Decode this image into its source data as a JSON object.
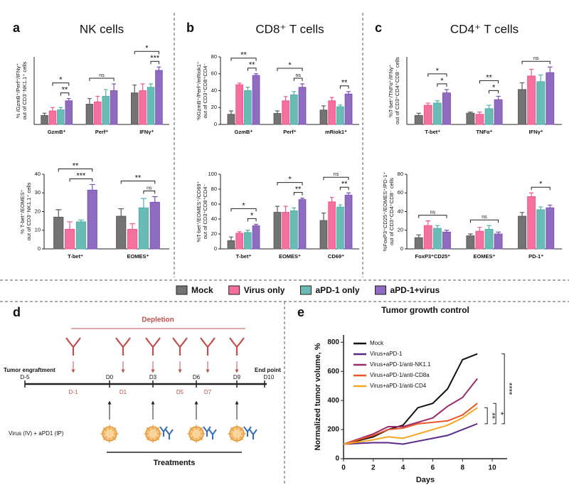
{
  "chart_data": [
    {
      "type": "bar",
      "panel": "a",
      "title": "NK cells",
      "ylabel": [
        "% /GzmB⁺/Perf⁺/IFNγ⁺",
        "out of CD3⁻NK1.1⁺ cells"
      ],
      "categories": [
        "GzmB⁺",
        "Perf⁺",
        "IFNγ⁺"
      ],
      "series": [
        {
          "values": [
            8,
            18,
            28
          ],
          "errors": [
            2,
            5,
            7
          ]
        },
        {
          "values": [
            12,
            20,
            30
          ],
          "errors": [
            3,
            5,
            6
          ]
        },
        {
          "values": [
            13,
            25,
            33
          ],
          "errors": [
            2,
            6,
            3
          ]
        },
        {
          "values": [
            21,
            30,
            48
          ],
          "errors": [
            2,
            6,
            3
          ]
        }
      ],
      "ylim": [
        0,
        60
      ],
      "annotations": [
        {
          "label": "**",
          "category": 0,
          "from": 2,
          "to": 3
        },
        {
          "label": "*",
          "category": 0,
          "from": 1,
          "to": 3
        },
        {
          "label": "ns",
          "category": 1,
          "from": 0,
          "to": 3
        },
        {
          "label": "***",
          "category": 2,
          "from": 2,
          "to": 3
        },
        {
          "label": "*",
          "category": 2,
          "from": 0,
          "to": 3
        }
      ]
    },
    {
      "type": "bar",
      "ylabel": [
        "% T-bet⁺/EOMES⁺",
        "out of CD3⁻NK1.1⁺ cells"
      ],
      "categories": [
        "T-bet⁺",
        "EOMES⁺"
      ],
      "series": [
        {
          "values": [
            17,
            17.5
          ],
          "errors": [
            4,
            4
          ]
        },
        {
          "values": [
            10.5,
            10.5
          ],
          "errors": [
            4,
            3
          ]
        },
        {
          "values": [
            14.5,
            22
          ],
          "errors": [
            1,
            5
          ]
        },
        {
          "values": [
            31.5,
            25
          ],
          "errors": [
            3,
            3
          ]
        }
      ],
      "ylim": [
        0,
        40
      ],
      "yticks": [
        0,
        10,
        20,
        30,
        40
      ],
      "annotations": [
        {
          "label": "***",
          "category": 0,
          "from": 1,
          "to": 3
        },
        {
          "label": "**",
          "category": 0,
          "from": 0,
          "to": 3
        },
        {
          "label": "ns",
          "category": 1,
          "from": 2,
          "to": 3
        },
        {
          "label": "**",
          "category": 1,
          "from": 0,
          "to": 3
        }
      ]
    },
    {
      "type": "bar",
      "panel": "b",
      "title": "CD8⁺ T cells",
      "ylabel": [
        "%GzmB⁺/Perf⁺/mRiok1⁺",
        "out of CD3⁺CD8⁺CD4⁻"
      ],
      "categories": [
        "GzmB⁺",
        "Perf⁺",
        "mRiok1⁺"
      ],
      "series": [
        {
          "values": [
            12,
            13,
            17
          ],
          "errors": [
            4,
            3,
            5
          ]
        },
        {
          "values": [
            47,
            28,
            28
          ],
          "errors": [
            2,
            5,
            4
          ]
        },
        {
          "values": [
            40,
            35,
            21
          ],
          "errors": [
            4,
            4,
            2
          ]
        },
        {
          "values": [
            58,
            44,
            36
          ],
          "errors": [
            2,
            4,
            3
          ]
        }
      ],
      "ylim": [
        0,
        80
      ],
      "yticks": [
        0,
        20,
        40,
        60,
        80
      ],
      "annotations": [
        {
          "label": "**",
          "category": 0,
          "from": 2,
          "to": 3
        },
        {
          "label": "**",
          "category": 0,
          "from": 0,
          "to": 3
        },
        {
          "label": "ns",
          "category": 1,
          "from": 2,
          "to": 3
        },
        {
          "label": "*",
          "category": 1,
          "from": 0,
          "to": 3
        },
        {
          "label": "**",
          "category": 2,
          "from": 2,
          "to": 3
        }
      ]
    },
    {
      "type": "bar",
      "ylabel": [
        "%T-bet⁺/EOMES⁺/CD69⁺",
        "out of CD3⁺CD8⁺CD4⁻"
      ],
      "categories": [
        "T-bet⁺",
        "EOMES⁺",
        "CD69⁺"
      ],
      "series": [
        {
          "values": [
            11,
            49,
            38
          ],
          "errors": [
            5,
            8,
            10
          ]
        },
        {
          "values": [
            21,
            49,
            63
          ],
          "errors": [
            2,
            8,
            6
          ]
        },
        {
          "values": [
            22,
            51,
            56
          ],
          "errors": [
            3,
            4,
            3
          ]
        },
        {
          "values": [
            31,
            66,
            72
          ],
          "errors": [
            2,
            2,
            3
          ]
        }
      ],
      "ylim": [
        0,
        100
      ],
      "yticks": [
        0,
        20,
        40,
        60,
        80,
        100
      ],
      "annotations": [
        {
          "label": "*",
          "category": 0,
          "from": 2,
          "to": 3
        },
        {
          "label": "*",
          "category": 0,
          "from": 0,
          "to": 3
        },
        {
          "label": "**",
          "category": 1,
          "from": 2,
          "to": 3
        },
        {
          "label": "*",
          "category": 1,
          "from": 0,
          "to": 3
        },
        {
          "label": "**",
          "category": 2,
          "from": 2,
          "to": 3
        },
        {
          "label": "ns",
          "category": 2,
          "from": 0,
          "to": 3
        }
      ]
    },
    {
      "type": "bar",
      "panel": "c",
      "title": "CD4⁺ T cells",
      "ylabel": [
        "%T-bet⁺/TNFα⁺/IFNγ⁺",
        "out of CD3⁺CD4⁺CD8⁻ cells"
      ],
      "categories": [
        "T-bet⁺",
        "TNFα⁺",
        "IFNγ⁺"
      ],
      "series": [
        {
          "values": [
            8,
            10,
            31
          ],
          "errors": [
            2,
            1,
            6
          ]
        },
        {
          "values": [
            17,
            9,
            43
          ],
          "errors": [
            2,
            2,
            6
          ]
        },
        {
          "values": [
            19,
            14,
            38
          ],
          "errors": [
            2,
            3,
            6
          ]
        },
        {
          "values": [
            28,
            22,
            46
          ],
          "errors": [
            3,
            3,
            5
          ]
        }
      ],
      "ylim": [
        0,
        60
      ],
      "annotations": [
        {
          "label": "*",
          "category": 0,
          "from": 2,
          "to": 3
        },
        {
          "label": "*",
          "category": 0,
          "from": 1,
          "to": 3
        },
        {
          "label": "*",
          "category": 1,
          "from": 2,
          "to": 3
        },
        {
          "label": "**",
          "category": 1,
          "from": 1,
          "to": 3
        },
        {
          "label": "ns",
          "category": 2,
          "from": 0,
          "to": 3
        }
      ]
    },
    {
      "type": "bar",
      "ylabel": [
        "%FoxP3⁺CD25⁺/EOMES⁺/PD-1⁺",
        "out of CD3⁺CD4⁺CD8⁻ cells"
      ],
      "categories": [
        "FoxP3⁺CD25⁺",
        "EOMES⁺",
        "PD-1⁺"
      ],
      "series": [
        {
          "values": [
            12,
            14,
            35
          ],
          "errors": [
            3,
            2,
            4
          ]
        },
        {
          "values": [
            25,
            19,
            56
          ],
          "errors": [
            5,
            4,
            4
          ]
        },
        {
          "values": [
            22,
            21,
            42
          ],
          "errors": [
            3,
            4,
            3
          ]
        },
        {
          "values": [
            18,
            16,
            44
          ],
          "errors": [
            2,
            2,
            3
          ]
        }
      ],
      "ylim": [
        0,
        80
      ],
      "yticks": [
        0,
        20,
        40,
        60,
        80
      ],
      "annotations": [
        {
          "label": "ns",
          "category": 0,
          "from": 0,
          "to": 3
        },
        {
          "label": "ns",
          "category": 1,
          "from": 0,
          "to": 3
        },
        {
          "label": "*",
          "category": 2,
          "from": 1,
          "to": 3
        }
      ]
    },
    {
      "type": "line",
      "panel": "e",
      "title": "Tumor growth control",
      "xlabel": "Days",
      "ylabel": "Normalized tumor volume, %",
      "x": [
        0,
        2,
        3,
        4,
        5,
        6,
        7,
        8,
        9
      ],
      "series": [
        {
          "name": "Mock",
          "color": "#111111",
          "values": [
            100,
            150,
            200,
            230,
            350,
            380,
            480,
            680,
            720
          ]
        },
        {
          "name": "Virus+aPD-1",
          "color": "#5b2a86",
          "values": [
            100,
            110,
            110,
            100,
            120,
            140,
            160,
            200,
            240
          ]
        },
        {
          "name": "Virus+aPD-1/anti-NK1.1",
          "color": "#9b2a6b",
          "values": [
            100,
            170,
            220,
            220,
            250,
            280,
            360,
            420,
            550
          ]
        },
        {
          "name": "Virus+aPD-1/anti-CD8a",
          "color": "#e8562a",
          "values": [
            100,
            160,
            200,
            210,
            240,
            250,
            260,
            300,
            380
          ]
        },
        {
          "name": "Virus+aPD-1/anti-CD4",
          "color": "#f5a623",
          "values": [
            100,
            130,
            150,
            140,
            170,
            200,
            230,
            280,
            350
          ]
        }
      ],
      "xlim": [
        0,
        11
      ],
      "xticks": [
        0,
        2,
        4,
        6,
        8,
        10
      ],
      "ylim": [
        0,
        850
      ],
      "yticks": [
        0,
        200,
        400,
        600,
        800
      ],
      "annotations": [
        {
          "label": "**",
          "from": 1,
          "to": 4
        },
        {
          "label": "*",
          "from": 1,
          "to": 3
        },
        {
          "label": "****",
          "from": 1,
          "to": 0
        }
      ]
    }
  ],
  "legend": {
    "series": [
      {
        "name": "Mock",
        "color": "#5a5a5a"
      },
      {
        "name": "Virus only",
        "color": "#f2578e"
      },
      {
        "name": "aPD-1 only",
        "color": "#4fb0a8"
      },
      {
        "name": "aPD-1+virus",
        "color": "#7d52b5"
      }
    ]
  },
  "diagram": {
    "panel": "d",
    "depletion": "Depletion",
    "start": "Tumor engraftment",
    "end": "End point",
    "days": [
      "D-5",
      "D-1",
      "D0",
      "D1",
      "D3",
      "D5",
      "D6",
      "D7",
      "D9",
      "D10"
    ],
    "treatment": "Virus (IV) + aPD1 (IP)",
    "treatments": "Treatments"
  }
}
